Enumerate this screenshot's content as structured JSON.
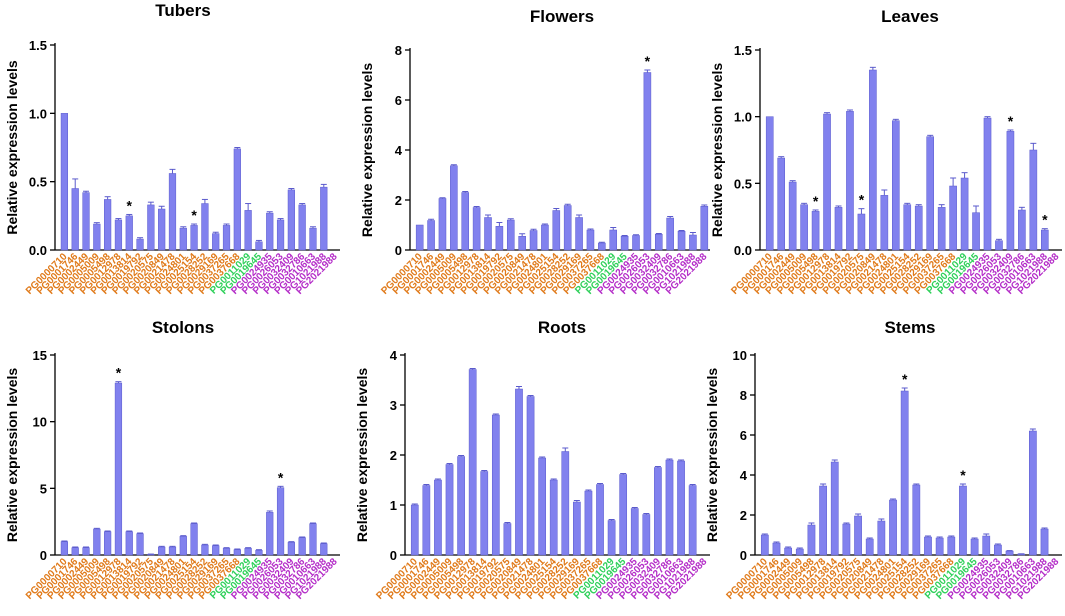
{
  "figure": {
    "ylabel": "Relative expression levels"
  },
  "colors": {
    "bar": "#8181ee",
    "bar_edge": "#5a5acc",
    "axis": "#000000",
    "orange": "#e07a1a",
    "green": "#2fd05a",
    "magenta": "#b42dc8"
  },
  "chart_data": [
    {
      "type": "bar",
      "title": "Tubers",
      "ylabel": "Relative expression levels",
      "ylim": [
        0,
        1.5
      ],
      "yticks": [
        "0.0",
        "0.5",
        "1.0",
        "1.5"
      ],
      "categories": [
        "PG0000710",
        "PG0001746",
        "PG0002449",
        "PG0005009",
        "PG0005498",
        "PG0012978",
        "PG0013814",
        "PG0019792",
        "PG0020575",
        "PG0020849",
        "PG0021478",
        "PG0024801",
        "PG0025154",
        "PG0028252",
        "PG0029169",
        "PG0037265",
        "PG0037668",
        "PG0011029",
        "PG0019645",
        "PG0024935",
        "PG0026053",
        "PG0032409",
        "PG0032786",
        "PG0010663",
        "PG1021988",
        "PG2021988"
      ],
      "label_colors": [
        "orange",
        "orange",
        "orange",
        "orange",
        "orange",
        "orange",
        "orange",
        "orange",
        "orange",
        "orange",
        "orange",
        "orange",
        "orange",
        "orange",
        "orange",
        "orange",
        "orange",
        "green",
        "green",
        "magenta",
        "magenta",
        "magenta",
        "magenta",
        "magenta",
        "magenta",
        "magenta"
      ],
      "values": [
        1.0,
        0.45,
        0.42,
        0.19,
        0.37,
        0.22,
        0.25,
        0.08,
        0.33,
        0.3,
        0.56,
        0.16,
        0.18,
        0.34,
        0.12,
        0.18,
        0.74,
        0.29,
        0.06,
        0.27,
        0.22,
        0.44,
        0.33,
        0.16,
        0.46,
        null
      ],
      "errors": [
        0.0,
        0.07,
        0.01,
        0.01,
        0.02,
        0.01,
        0.01,
        0.01,
        0.02,
        0.02,
        0.03,
        0.01,
        0.01,
        0.03,
        0.01,
        0.01,
        0.01,
        0.05,
        0.01,
        0.01,
        0.01,
        0.01,
        0.01,
        0.01,
        0.02,
        0
      ],
      "significant": [
        false,
        false,
        false,
        false,
        false,
        false,
        true,
        false,
        false,
        false,
        false,
        false,
        true,
        false,
        false,
        false,
        false,
        false,
        false,
        false,
        false,
        false,
        false,
        false,
        false,
        false
      ]
    },
    {
      "type": "bar",
      "title": "Flowers",
      "ylabel": "Relative expression levels",
      "ylim": [
        0,
        8
      ],
      "yticks": [
        "0",
        "2",
        "4",
        "6",
        "8"
      ],
      "categories": [
        "PG0000710",
        "PG0001746",
        "PG0002449",
        "PG0005009",
        "PG0005498",
        "PG0012978",
        "PG0013814",
        "PG0019792",
        "PG0020575",
        "PG0020849",
        "PG0021478",
        "PG0024801",
        "PG0025154",
        "PG0028252",
        "PG0029169",
        "PG0037265",
        "PG0037668",
        "PG0011029",
        "PG0019645",
        "PG0024935",
        "PG0026053",
        "PG0032409",
        "PG0032786",
        "PG0010663",
        "PG1021988",
        "PG2021988"
      ],
      "label_colors": [
        "orange",
        "orange",
        "orange",
        "orange",
        "orange",
        "orange",
        "orange",
        "orange",
        "orange",
        "orange",
        "orange",
        "orange",
        "orange",
        "orange",
        "orange",
        "orange",
        "orange",
        "green",
        "green",
        "magenta",
        "magenta",
        "magenta",
        "magenta",
        "magenta",
        "magenta",
        "magenta"
      ],
      "values": [
        1.0,
        1.18,
        2.06,
        3.37,
        2.3,
        1.7,
        1.3,
        0.95,
        1.2,
        0.55,
        0.78,
        1.0,
        1.58,
        1.78,
        1.3,
        0.8,
        0.28,
        0.8,
        0.55,
        0.58,
        7.1,
        0.63,
        1.28,
        0.75,
        0.6,
        1.75
      ],
      "errors": [
        0.0,
        0.05,
        0.03,
        0.04,
        0.04,
        0.04,
        0.1,
        0.15,
        0.05,
        0.1,
        0.05,
        0.04,
        0.08,
        0.05,
        0.1,
        0.04,
        0.03,
        0.1,
        0.03,
        0.03,
        0.1,
        0.03,
        0.06,
        0.03,
        0.1,
        0.05
      ],
      "significant": [
        false,
        false,
        false,
        false,
        false,
        false,
        false,
        false,
        false,
        false,
        false,
        false,
        false,
        false,
        false,
        false,
        false,
        false,
        false,
        false,
        true,
        false,
        false,
        false,
        false,
        false
      ]
    },
    {
      "type": "bar",
      "title": "Leaves",
      "ylabel": "Relative expression levels",
      "ylim": [
        0,
        1.5
      ],
      "yticks": [
        "0.0",
        "0.5",
        "1.0",
        "1.5"
      ],
      "categories": [
        "PG0000710",
        "PG0001746",
        "PG0002449",
        "PG0005009",
        "PG0005498",
        "PG0012978",
        "PG0013814",
        "PG0019792",
        "PG0020575",
        "PG0020849",
        "PG0021478",
        "PG0024801",
        "PG0025154",
        "PG0028252",
        "PG0029169",
        "PG0037265",
        "PG0037668",
        "PG0011029",
        "PG0019645",
        "PG0024935",
        "PG0026053",
        "PG0032409",
        "PG0032786",
        "PG0010663",
        "PG1021988",
        "PG2021988"
      ],
      "label_colors": [
        "orange",
        "orange",
        "orange",
        "orange",
        "orange",
        "orange",
        "orange",
        "orange",
        "orange",
        "orange",
        "orange",
        "orange",
        "orange",
        "orange",
        "orange",
        "orange",
        "orange",
        "green",
        "green",
        "magenta",
        "magenta",
        "magenta",
        "magenta",
        "magenta",
        "magenta",
        "magenta"
      ],
      "values": [
        1.0,
        0.69,
        0.51,
        0.34,
        0.29,
        1.02,
        0.32,
        1.04,
        0.27,
        1.35,
        0.41,
        0.97,
        0.34,
        0.33,
        0.85,
        0.32,
        0.48,
        0.54,
        0.28,
        0.99,
        0.07,
        0.89,
        0.3,
        0.75,
        0.15,
        null
      ],
      "errors": [
        0.0,
        0.01,
        0.01,
        0.01,
        0.01,
        0.01,
        0.01,
        0.01,
        0.04,
        0.02,
        0.04,
        0.01,
        0.01,
        0.01,
        0.01,
        0.02,
        0.06,
        0.04,
        0.05,
        0.01,
        0.01,
        0.01,
        0.02,
        0.05,
        0.01,
        0
      ],
      "significant": [
        false,
        false,
        false,
        false,
        true,
        false,
        false,
        false,
        true,
        false,
        false,
        false,
        false,
        false,
        false,
        false,
        false,
        false,
        false,
        false,
        false,
        true,
        false,
        false,
        true,
        false
      ]
    },
    {
      "type": "bar",
      "title": "Stolons",
      "ylabel": "Relative expression levels",
      "ylim": [
        0,
        15
      ],
      "yticks": [
        "0",
        "5",
        "10",
        "15"
      ],
      "categories": [
        "PG0000710",
        "PG0001746",
        "PG0002449",
        "PG0005009",
        "PG0005498",
        "PG0012978",
        "PG0013814",
        "PG0019792",
        "PG0020575",
        "PG0020849",
        "PG0021478",
        "PG0024801",
        "PG0025154",
        "PG0028252",
        "PG0029169",
        "PG0037265",
        "PG0037668",
        "PG0011029",
        "PG0019645",
        "PG0024935",
        "PG0026053",
        "PG0032409",
        "PG0032786",
        "PG0010663",
        "PG1021988",
        "PG2021988"
      ],
      "label_colors": [
        "orange",
        "orange",
        "orange",
        "orange",
        "orange",
        "orange",
        "orange",
        "orange",
        "orange",
        "orange",
        "orange",
        "orange",
        "orange",
        "orange",
        "orange",
        "orange",
        "orange",
        "green",
        "green",
        "magenta",
        "magenta",
        "magenta",
        "magenta",
        "magenta",
        "magenta",
        "magenta"
      ],
      "values": [
        1.0,
        0.55,
        0.55,
        1.95,
        1.75,
        12.9,
        1.75,
        1.6,
        0.05,
        0.6,
        0.6,
        1.4,
        2.35,
        0.75,
        0.7,
        0.5,
        0.4,
        0.5,
        0.35,
        3.2,
        5.05,
        0.95,
        1.3,
        2.35,
        0.85,
        null
      ],
      "errors": [
        0.05,
        0.05,
        0.05,
        0.05,
        0.05,
        0.1,
        0.05,
        0.05,
        0.02,
        0.05,
        0.05,
        0.05,
        0.05,
        0.05,
        0.05,
        0.05,
        0.05,
        0.05,
        0.05,
        0.1,
        0.1,
        0.05,
        0.05,
        0.05,
        0.05,
        0
      ],
      "significant": [
        false,
        false,
        false,
        false,
        false,
        true,
        false,
        false,
        false,
        false,
        false,
        false,
        false,
        false,
        false,
        false,
        false,
        false,
        false,
        false,
        true,
        false,
        false,
        false,
        false,
        false
      ]
    },
    {
      "type": "bar",
      "title": "Roots",
      "ylabel": "Relative expression levels",
      "ylim": [
        0,
        4
      ],
      "yticks": [
        "0",
        "1",
        "2",
        "3",
        "4"
      ],
      "categories": [
        "PG0000710",
        "PG0001746",
        "PG0002449",
        "PG0005009",
        "PG0005498",
        "PG0012978",
        "PG0013814",
        "PG0019792",
        "PG0020575",
        "PG0020849",
        "PG0021478",
        "PG0024801",
        "PG0025154",
        "PG0028252",
        "PG0029169",
        "PG0037265",
        "PG0037668",
        "PG0011029",
        "PG0019645",
        "PG0024935",
        "PG0026053",
        "PG0032409",
        "PG0032786",
        "PG0010663",
        "PG1021988",
        "PG2021988"
      ],
      "label_colors": [
        "orange",
        "orange",
        "orange",
        "orange",
        "orange",
        "orange",
        "orange",
        "orange",
        "orange",
        "orange",
        "orange",
        "orange",
        "orange",
        "orange",
        "orange",
        "orange",
        "orange",
        "green",
        "green",
        "magenta",
        "magenta",
        "magenta",
        "magenta",
        "magenta",
        "magenta",
        "magenta"
      ],
      "values": [
        1.0,
        1.39,
        1.5,
        1.81,
        1.97,
        3.71,
        1.67,
        2.8,
        0.63,
        3.32,
        3.17,
        1.94,
        1.5,
        2.07,
        1.06,
        1.28,
        1.41,
        0.69,
        1.61,
        0.93,
        0.81,
        1.75,
        1.9,
        1.88,
        1.39,
        null
      ],
      "errors": [
        0.02,
        0.02,
        0.02,
        0.02,
        0.02,
        0.02,
        0.02,
        0.02,
        0.02,
        0.05,
        0.02,
        0.02,
        0.02,
        0.07,
        0.03,
        0.02,
        0.02,
        0.02,
        0.02,
        0.02,
        0.02,
        0.02,
        0.02,
        0.02,
        0.02,
        0
      ],
      "significant": [
        false,
        false,
        false,
        false,
        false,
        false,
        false,
        false,
        false,
        false,
        false,
        false,
        false,
        false,
        false,
        false,
        false,
        false,
        false,
        false,
        false,
        false,
        false,
        false,
        false,
        false
      ]
    },
    {
      "type": "bar",
      "title": "Stems",
      "ylabel": "Relative expression levels",
      "ylim": [
        0,
        10
      ],
      "yticks": [
        "0",
        "2",
        "4",
        "6",
        "8",
        "10"
      ],
      "categories": [
        "PG0000710",
        "PG0001746",
        "PG0002449",
        "PG0005009",
        "PG0005498",
        "PG0012978",
        "PG0013814",
        "PG0019792",
        "PG0020575",
        "PG0020849",
        "PG0021478",
        "PG0024801",
        "PG0025154",
        "PG0028252",
        "PG0029169",
        "PG0037265",
        "PG0037668",
        "PG0011029",
        "PG0019645",
        "PG0024935",
        "PG0026053",
        "PG0032409",
        "PG0032786",
        "PG0010663",
        "PG1021988",
        "PG2021988"
      ],
      "label_colors": [
        "orange",
        "orange",
        "orange",
        "orange",
        "orange",
        "orange",
        "orange",
        "orange",
        "orange",
        "orange",
        "orange",
        "orange",
        "orange",
        "orange",
        "orange",
        "orange",
        "orange",
        "green",
        "green",
        "magenta",
        "magenta",
        "magenta",
        "magenta",
        "magenta",
        "magenta",
        "magenta"
      ],
      "values": [
        1.0,
        0.6,
        0.35,
        0.3,
        1.5,
        3.45,
        4.65,
        1.55,
        1.95,
        0.8,
        1.7,
        2.75,
        8.2,
        3.5,
        0.9,
        0.85,
        0.9,
        3.45,
        0.8,
        0.95,
        0.5,
        0.2,
        0.05,
        6.2,
        1.3,
        null
      ],
      "errors": [
        0.05,
        0.05,
        0.05,
        0.05,
        0.1,
        0.1,
        0.1,
        0.05,
        0.1,
        0.05,
        0.1,
        0.05,
        0.15,
        0.05,
        0.05,
        0.05,
        0.05,
        0.1,
        0.05,
        0.1,
        0.05,
        0.02,
        0.01,
        0.1,
        0.05,
        0
      ],
      "significant": [
        false,
        false,
        false,
        false,
        false,
        false,
        false,
        false,
        false,
        false,
        false,
        false,
        true,
        false,
        false,
        false,
        false,
        true,
        false,
        false,
        false,
        false,
        false,
        false,
        false,
        false
      ]
    }
  ]
}
